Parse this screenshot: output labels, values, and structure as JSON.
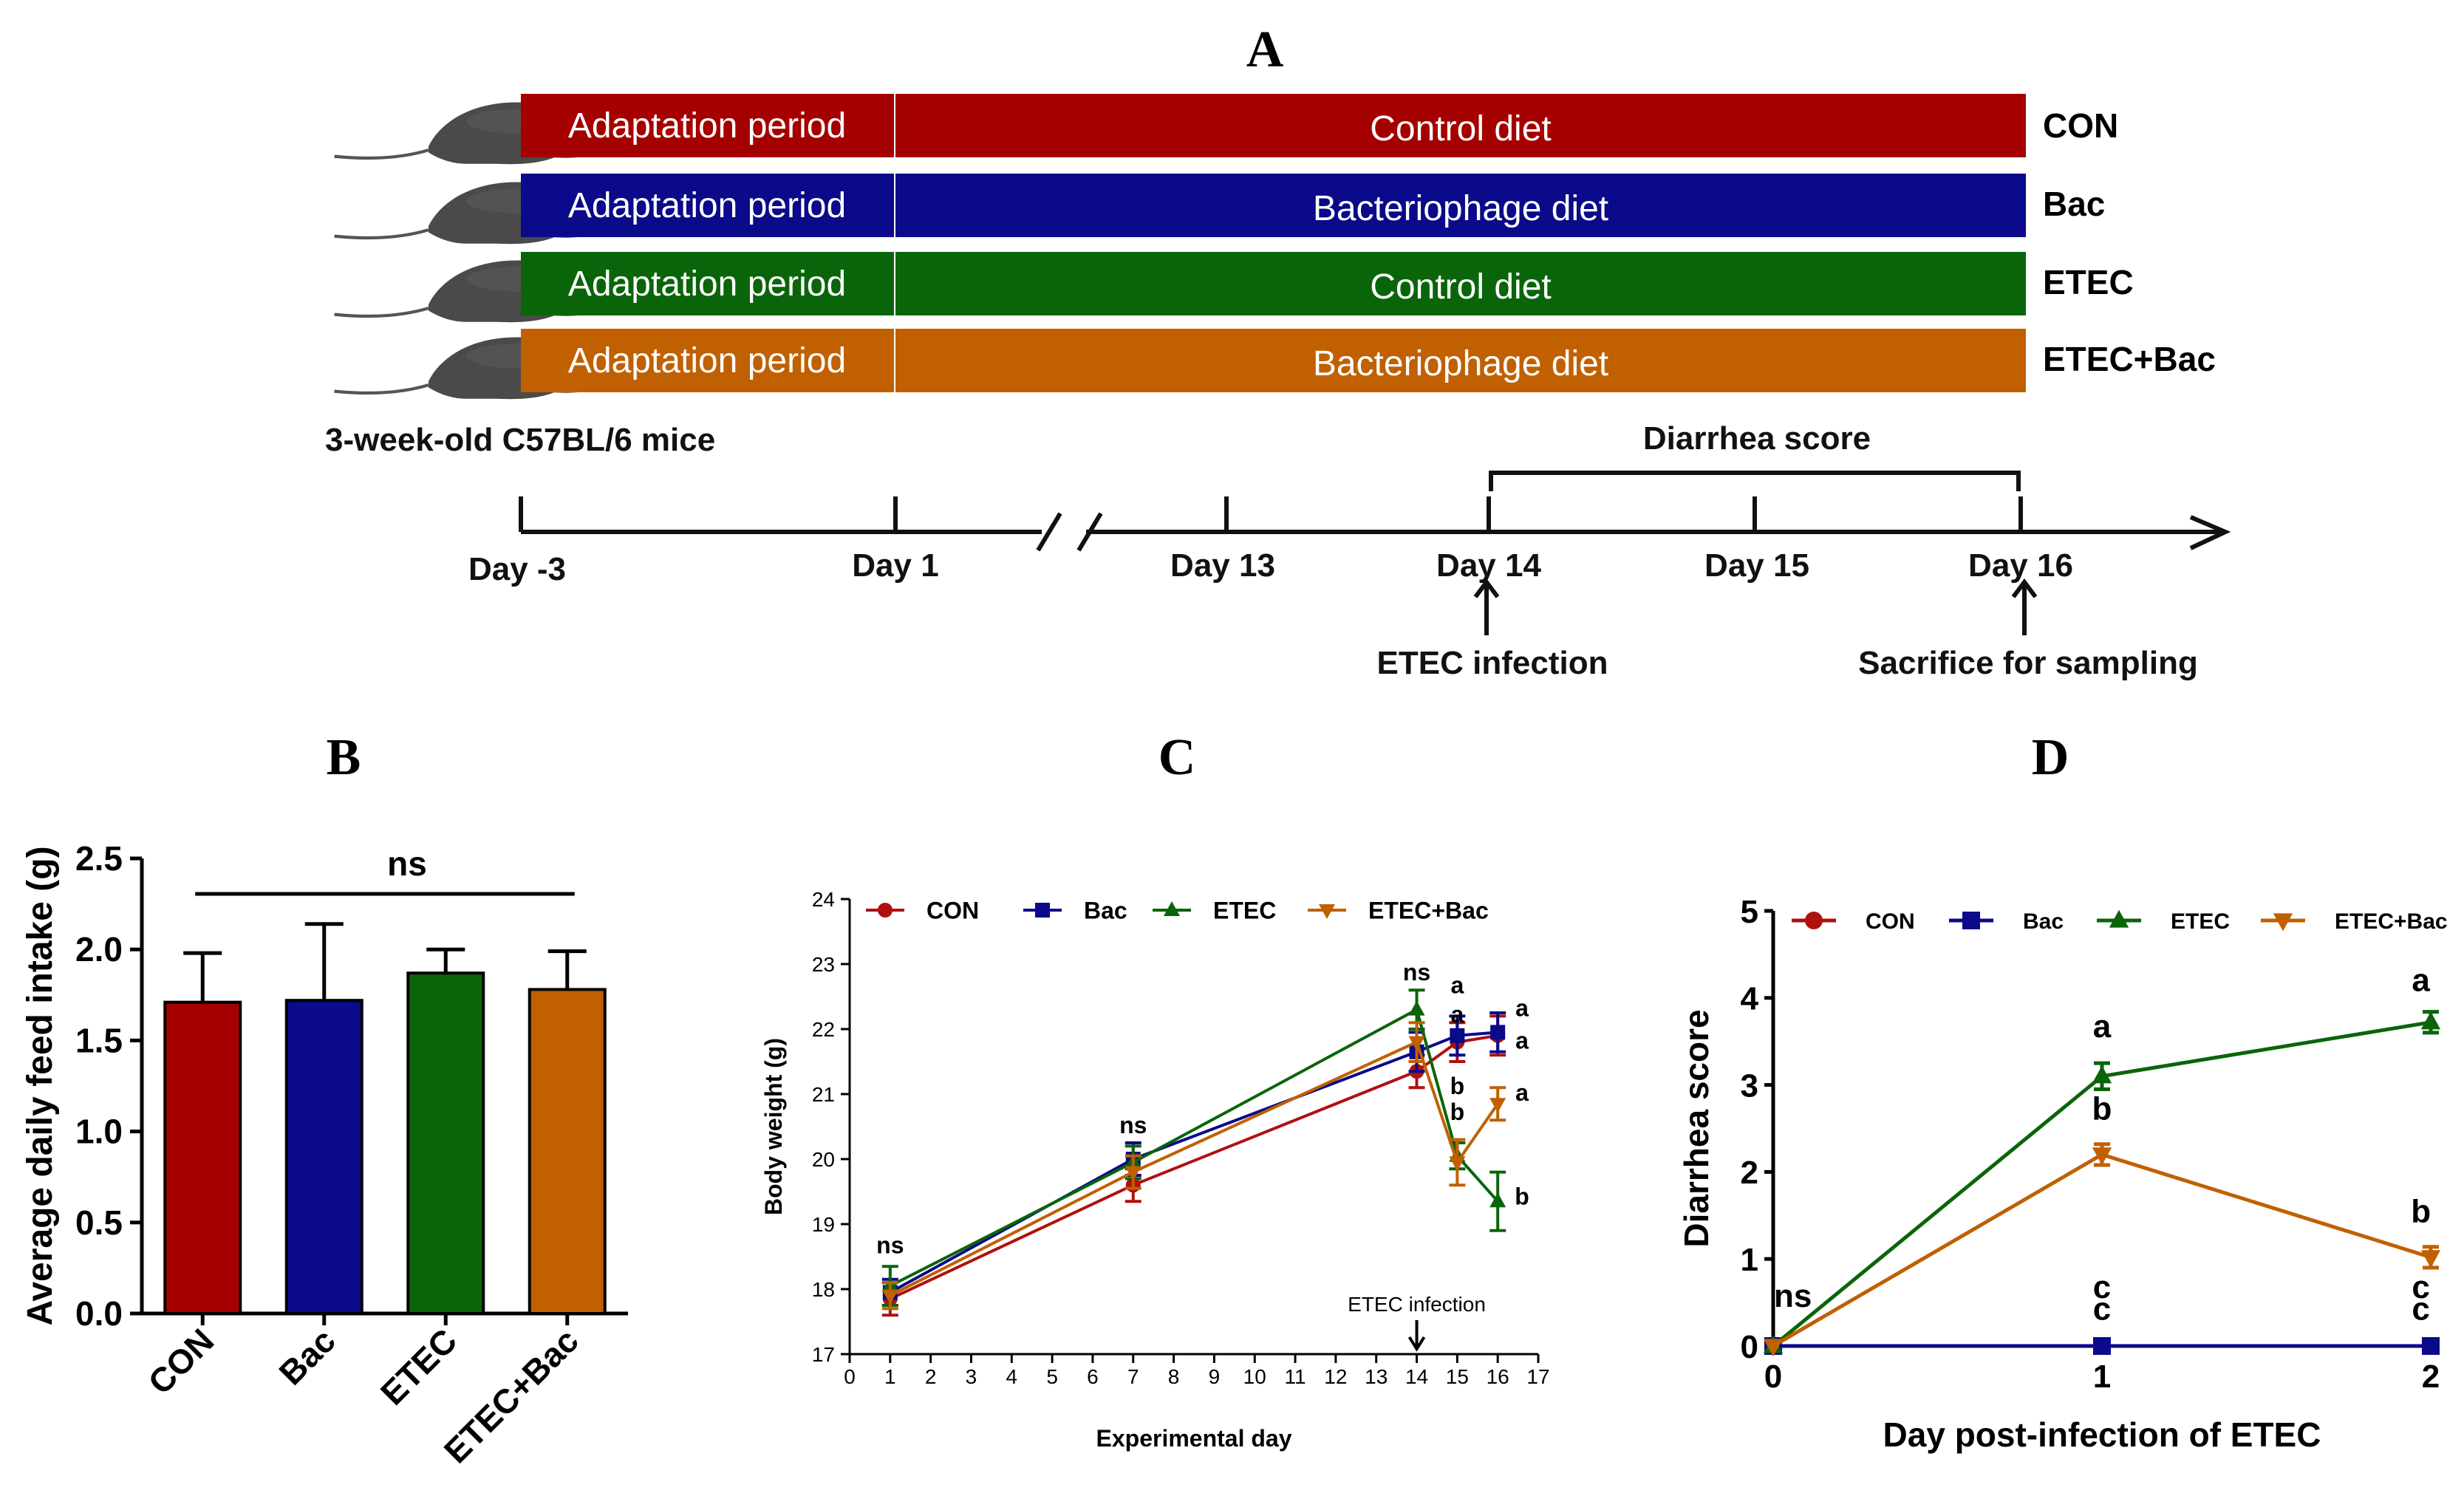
{
  "panels": {
    "a": "A",
    "b": "B",
    "c": "C",
    "d": "D"
  },
  "design": {
    "mice_label": "3-week-old  C57BL/6 mice",
    "groups": [
      {
        "name": "CON",
        "adapt": "Adaptation period",
        "diet": "Control diet",
        "color": "#a50000"
      },
      {
        "name": "Bac",
        "adapt": "Adaptation period",
        "diet": "Bacteriophage diet",
        "color": "#0a0a8a"
      },
      {
        "name": "ETEC",
        "adapt": "Adaptation period",
        "diet": "Control diet",
        "color": "#0a650a"
      },
      {
        "name": "ETEC+Bac",
        "adapt": "Adaptation period",
        "diet": "Bacteriophage diet",
        "color": "#c06000"
      }
    ],
    "timeline": {
      "days": [
        "Day -3",
        "Day 1",
        "Day 13",
        "Day 14",
        "Day 15",
        "Day 16"
      ],
      "bracket_label": "Diarrhea score",
      "event_infection": "ETEC infection",
      "event_sacrifice": "Sacrifice for sampling"
    }
  },
  "chart_data": [
    {
      "panel": "B",
      "type": "bar",
      "ylabel": "Average daily feed intake (g)",
      "categories": [
        "CON",
        "Bac",
        "ETEC",
        "ETEC+Bac"
      ],
      "values": [
        1.71,
        1.72,
        1.87,
        1.78
      ],
      "errors": [
        0.27,
        0.42,
        0.13,
        0.21
      ],
      "colors": [
        "#a50000",
        "#0a0a8a",
        "#0a650a",
        "#c06000"
      ],
      "ylim": [
        0,
        2.5
      ],
      "yticks": [
        "0.0",
        "0.5",
        "1.0",
        "1.5",
        "2.0",
        "2.5"
      ],
      "annotation": "ns"
    },
    {
      "panel": "C",
      "type": "line",
      "xlabel": "Experimental day",
      "ylabel": "Body weight (g)",
      "xlim": [
        0,
        17
      ],
      "ylim": [
        17,
        24
      ],
      "xticks": [
        "0",
        "1",
        "2",
        "3",
        "4",
        "5",
        "6",
        "7",
        "8",
        "9",
        "10",
        "11",
        "12",
        "13",
        "14",
        "15",
        "16",
        "17"
      ],
      "yticks": [
        "17",
        "18",
        "19",
        "20",
        "21",
        "22",
        "23",
        "24"
      ],
      "legend": [
        "CON",
        "Bac",
        "ETEC",
        "ETEC+Bac"
      ],
      "series": [
        {
          "name": "CON",
          "color": "#b01010",
          "marker": "circle",
          "x": [
            1,
            7,
            14,
            15,
            16
          ],
          "y": [
            17.85,
            19.6,
            21.35,
            21.8,
            21.9
          ],
          "err": [
            0.25,
            0.25,
            0.25,
            0.3,
            0.3
          ]
        },
        {
          "name": "Bac",
          "color": "#0a0a8a",
          "marker": "square",
          "x": [
            1,
            7,
            14,
            15,
            16
          ],
          "y": [
            17.95,
            20.0,
            21.65,
            21.9,
            21.95
          ],
          "err": [
            0.2,
            0.25,
            0.3,
            0.3,
            0.3
          ]
        },
        {
          "name": "ETEC",
          "color": "#0a650a",
          "marker": "triangle",
          "x": [
            1,
            7,
            14,
            15,
            16
          ],
          "y": [
            18.05,
            19.95,
            22.3,
            20.05,
            19.35
          ],
          "err": [
            0.3,
            0.25,
            0.3,
            0.2,
            0.45
          ]
        },
        {
          "name": "ETEC+Bac",
          "color": "#c06000",
          "marker": "triangle-down",
          "x": [
            1,
            7,
            14,
            15,
            16
          ],
          "y": [
            17.9,
            19.8,
            21.8,
            19.95,
            20.85
          ],
          "err": [
            0.2,
            0.25,
            0.3,
            0.35,
            0.25
          ]
        }
      ],
      "annotations": [
        {
          "text": "ns",
          "x": 1,
          "y": 18.55
        },
        {
          "text": "ns",
          "x": 7,
          "y": 20.4
        },
        {
          "text": "ns",
          "x": 14,
          "y": 22.75
        },
        {
          "text": "a",
          "x": 15,
          "y": 22.55
        },
        {
          "text": "a",
          "x": 15,
          "y": 22.1
        },
        {
          "text": "b",
          "x": 15,
          "y": 21.0
        },
        {
          "text": "b",
          "x": 15,
          "y": 20.6
        },
        {
          "text": "a",
          "x": 16.6,
          "y": 22.2
        },
        {
          "text": "a",
          "x": 16.6,
          "y": 21.7
        },
        {
          "text": "a",
          "x": 16.6,
          "y": 20.9
        },
        {
          "text": "b",
          "x": 16.6,
          "y": 19.3
        }
      ],
      "event_label": "ETEC infection",
      "event_x": 14
    },
    {
      "panel": "D",
      "type": "line",
      "xlabel": "Day post-infection of ETEC",
      "ylabel": "Diarrhea score",
      "xlim": [
        0,
        2
      ],
      "ylim": [
        0,
        5
      ],
      "xticks": [
        "0",
        "1",
        "2"
      ],
      "yticks": [
        "0",
        "1",
        "2",
        "3",
        "4",
        "5"
      ],
      "legend": [
        "CON",
        "Bac",
        "ETEC",
        "ETEC+Bac"
      ],
      "series": [
        {
          "name": "CON",
          "color": "#b01010",
          "marker": "circle",
          "x": [
            0,
            1,
            2
          ],
          "y": [
            0,
            0,
            0
          ],
          "err": [
            0,
            0,
            0
          ]
        },
        {
          "name": "Bac",
          "color": "#0a0a8a",
          "marker": "square",
          "x": [
            0,
            1,
            2
          ],
          "y": [
            0,
            0,
            0
          ],
          "err": [
            0,
            0,
            0
          ]
        },
        {
          "name": "ETEC",
          "color": "#0a650a",
          "marker": "triangle",
          "x": [
            0,
            1,
            2
          ],
          "y": [
            0,
            3.1,
            3.72
          ],
          "err": [
            0,
            0.15,
            0.12
          ]
        },
        {
          "name": "ETEC+Bac",
          "color": "#c06000",
          "marker": "triangle-down",
          "x": [
            0,
            1,
            2
          ],
          "y": [
            0,
            2.2,
            1.02
          ],
          "err": [
            0,
            0.12,
            0.12
          ]
        }
      ],
      "annotations": [
        {
          "text": "ns",
          "x": 0.06,
          "y": 0.45
        },
        {
          "text": "a",
          "x": 1,
          "y": 3.55
        },
        {
          "text": "b",
          "x": 1,
          "y": 2.6
        },
        {
          "text": "c",
          "x": 1,
          "y": 0.55
        },
        {
          "text": "c",
          "x": 1,
          "y": 0.3
        },
        {
          "text": "a",
          "x": 1.97,
          "y": 4.08
        },
        {
          "text": "b",
          "x": 1.97,
          "y": 1.42
        },
        {
          "text": "c",
          "x": 1.97,
          "y": 0.55
        },
        {
          "text": "c",
          "x": 1.97,
          "y": 0.3
        }
      ]
    }
  ]
}
